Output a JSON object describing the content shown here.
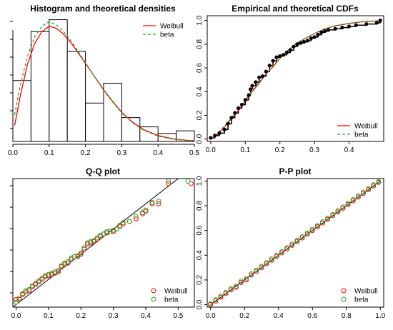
{
  "chart_data": [
    {
      "type": "histogram",
      "title": "Histogram and theoretical densities",
      "xlim": [
        0,
        0.5
      ],
      "ylim": [
        0,
        9.5
      ],
      "x_ticks": [
        "0.0",
        "0.1",
        "0.2",
        "0.3",
        "0.4",
        "0.5"
      ],
      "bins": {
        "edges": [
          0,
          0.05,
          0.1,
          0.15,
          0.2,
          0.25,
          0.3,
          0.35,
          0.4,
          0.45,
          0.5
        ],
        "density": [
          4.6,
          8.3,
          9.2,
          6.8,
          2.9,
          4.4,
          1.8,
          1.1,
          0.6,
          0.8
        ]
      },
      "series": [
        {
          "name": "Weibull",
          "color": "#ff0000",
          "style": "solid",
          "x": [
            0.005,
            0.02,
            0.04,
            0.06,
            0.08,
            0.1,
            0.12,
            0.14,
            0.16,
            0.18,
            0.2,
            0.22,
            0.25,
            0.28,
            0.3,
            0.33,
            0.36,
            0.4,
            0.44,
            0.48,
            0.5
          ],
          "y": [
            1.2,
            3.4,
            5.8,
            7.4,
            8.3,
            8.7,
            8.55,
            8.1,
            7.45,
            6.7,
            5.9,
            5.1,
            3.9,
            2.85,
            2.2,
            1.45,
            0.9,
            0.45,
            0.2,
            0.08,
            0.05
          ]
        },
        {
          "name": "beta",
          "color": "#2aa52a",
          "style": "dashed",
          "x": [
            0.005,
            0.02,
            0.04,
            0.06,
            0.08,
            0.1,
            0.12,
            0.14,
            0.16,
            0.18,
            0.2,
            0.22,
            0.25,
            0.28,
            0.3,
            0.33,
            0.36,
            0.4,
            0.44,
            0.48,
            0.5
          ],
          "y": [
            2.0,
            4.2,
            6.4,
            7.9,
            8.7,
            9.05,
            8.8,
            8.3,
            7.6,
            6.8,
            5.95,
            5.1,
            3.85,
            2.8,
            2.15,
            1.4,
            0.85,
            0.4,
            0.17,
            0.06,
            0.04
          ]
        }
      ],
      "legend": {
        "position": "top-right",
        "entries": [
          "Weibull",
          "beta"
        ]
      }
    },
    {
      "type": "line",
      "title": "Empirical and theoretical CDFs",
      "xlim": [
        -0.01,
        0.5
      ],
      "ylim": [
        -0.02,
        1.04
      ],
      "x_ticks": [
        "0.0",
        "0.1",
        "0.2",
        "0.3",
        "0.4"
      ],
      "y_ticks": [
        "0.0",
        "0.2",
        "0.4",
        "0.6",
        "0.8",
        "1.0"
      ],
      "empirical": {
        "x": [
          0.0,
          0.012,
          0.025,
          0.04,
          0.05,
          0.06,
          0.07,
          0.08,
          0.09,
          0.1,
          0.11,
          0.115,
          0.12,
          0.13,
          0.14,
          0.15,
          0.16,
          0.17,
          0.18,
          0.19,
          0.2,
          0.21,
          0.22,
          0.23,
          0.24,
          0.25,
          0.26,
          0.27,
          0.28,
          0.29,
          0.3,
          0.31,
          0.32,
          0.33,
          0.34,
          0.36,
          0.38,
          0.4,
          0.42,
          0.45,
          0.48,
          0.49
        ],
        "y": [
          0.01,
          0.03,
          0.05,
          0.08,
          0.13,
          0.18,
          0.22,
          0.26,
          0.29,
          0.33,
          0.37,
          0.42,
          0.45,
          0.48,
          0.52,
          0.53,
          0.57,
          0.62,
          0.66,
          0.69,
          0.7,
          0.71,
          0.73,
          0.75,
          0.78,
          0.8,
          0.81,
          0.82,
          0.83,
          0.85,
          0.86,
          0.88,
          0.9,
          0.91,
          0.92,
          0.93,
          0.94,
          0.95,
          0.96,
          0.97,
          0.98,
          1.0
        ]
      },
      "series": [
        {
          "name": "Weibull",
          "color": "#ff0000",
          "style": "solid",
          "x": [
            0.0,
            0.02,
            0.04,
            0.06,
            0.08,
            0.1,
            0.12,
            0.14,
            0.16,
            0.18,
            0.2,
            0.22,
            0.25,
            0.28,
            0.3,
            0.33,
            0.36,
            0.4,
            0.44,
            0.49
          ],
          "y": [
            0.0,
            0.04,
            0.1,
            0.17,
            0.24,
            0.32,
            0.4,
            0.47,
            0.55,
            0.61,
            0.68,
            0.74,
            0.81,
            0.86,
            0.89,
            0.93,
            0.955,
            0.975,
            0.99,
            0.997
          ]
        },
        {
          "name": "beta",
          "color": "#2aa52a",
          "style": "dashed",
          "x": [
            0.0,
            0.02,
            0.04,
            0.06,
            0.08,
            0.1,
            0.12,
            0.14,
            0.16,
            0.18,
            0.2,
            0.22,
            0.25,
            0.28,
            0.3,
            0.33,
            0.36,
            0.4,
            0.44,
            0.49
          ],
          "y": [
            0.0,
            0.05,
            0.11,
            0.18,
            0.25,
            0.33,
            0.41,
            0.48,
            0.55,
            0.62,
            0.68,
            0.74,
            0.81,
            0.86,
            0.89,
            0.93,
            0.955,
            0.976,
            0.99,
            0.997
          ]
        }
      ],
      "legend": {
        "position": "bottom-right",
        "entries": [
          "Weibull",
          "beta"
        ]
      }
    },
    {
      "type": "scatter",
      "title": "Q-Q plot",
      "xlim": [
        -0.01,
        0.55
      ],
      "ylim": [
        -0.01,
        0.5
      ],
      "x_ticks": [
        "0.0",
        "0.1",
        "0.2",
        "0.3",
        "0.4",
        "0.5"
      ],
      "reference_line": "y = x",
      "series": [
        {
          "name": "Weibull",
          "color": "#ff0000",
          "marker": "open-circle",
          "x": [
            0.0,
            0.01,
            0.02,
            0.03,
            0.04,
            0.05,
            0.06,
            0.07,
            0.08,
            0.09,
            0.1,
            0.11,
            0.12,
            0.13,
            0.14,
            0.15,
            0.16,
            0.17,
            0.18,
            0.19,
            0.2,
            0.21,
            0.22,
            0.23,
            0.24,
            0.25,
            0.26,
            0.27,
            0.28,
            0.29,
            0.3,
            0.31,
            0.32,
            0.33,
            0.35,
            0.37,
            0.39,
            0.4,
            0.42,
            0.44,
            0.47,
            0.54
          ],
          "y": [
            0.02,
            0.02,
            0.04,
            0.05,
            0.055,
            0.07,
            0.08,
            0.09,
            0.1,
            0.11,
            0.115,
            0.12,
            0.125,
            0.13,
            0.15,
            0.16,
            0.165,
            0.18,
            0.19,
            0.19,
            0.2,
            0.22,
            0.24,
            0.245,
            0.25,
            0.26,
            0.27,
            0.28,
            0.285,
            0.29,
            0.29,
            0.3,
            0.31,
            0.32,
            0.33,
            0.34,
            0.36,
            0.37,
            0.4,
            0.4,
            0.48,
            0.48
          ]
        },
        {
          "name": "beta",
          "color": "#2aa52a",
          "marker": "open-circle",
          "x": [
            0.0,
            0.01,
            0.02,
            0.03,
            0.04,
            0.05,
            0.06,
            0.07,
            0.08,
            0.09,
            0.1,
            0.11,
            0.12,
            0.13,
            0.14,
            0.15,
            0.16,
            0.17,
            0.18,
            0.19,
            0.2,
            0.21,
            0.22,
            0.23,
            0.24,
            0.25,
            0.26,
            0.27,
            0.28,
            0.29,
            0.3,
            0.31,
            0.32,
            0.33,
            0.35,
            0.37,
            0.39,
            0.4,
            0.42,
            0.44,
            0.47,
            0.53
          ],
          "y": [
            0.01,
            0.025,
            0.045,
            0.055,
            0.06,
            0.075,
            0.085,
            0.095,
            0.105,
            0.115,
            0.12,
            0.125,
            0.13,
            0.135,
            0.155,
            0.165,
            0.17,
            0.185,
            0.19,
            0.195,
            0.205,
            0.225,
            0.245,
            0.25,
            0.255,
            0.265,
            0.275,
            0.28,
            0.29,
            0.29,
            0.295,
            0.3,
            0.315,
            0.325,
            0.33,
            0.35,
            0.365,
            0.375,
            0.405,
            0.41,
            0.49,
            0.49
          ]
        }
      ],
      "legend": {
        "position": "bottom-right",
        "entries": [
          "Weibull",
          "beta"
        ]
      }
    },
    {
      "type": "scatter",
      "title": "P-P plot",
      "xlim": [
        -0.02,
        1.02
      ],
      "ylim": [
        -0.02,
        1.02
      ],
      "x_ticks": [
        "0.0",
        "0.2",
        "0.4",
        "0.6",
        "0.8",
        "1.0"
      ],
      "y_ticks": [
        "0.0",
        "0.2",
        "0.4",
        "0.6",
        "0.8",
        "1.0"
      ],
      "reference_line": "y = x",
      "series": [
        {
          "name": "Weibull",
          "color": "#ff0000",
          "marker": "open-circle",
          "x": [
            0.0,
            0.03,
            0.06,
            0.09,
            0.12,
            0.15,
            0.18,
            0.21,
            0.24,
            0.27,
            0.3,
            0.33,
            0.36,
            0.39,
            0.42,
            0.45,
            0.48,
            0.51,
            0.54,
            0.57,
            0.6,
            0.63,
            0.66,
            0.69,
            0.72,
            0.75,
            0.78,
            0.81,
            0.84,
            0.87,
            0.9,
            0.93,
            0.96,
            0.99
          ],
          "y": [
            0.0,
            0.03,
            0.06,
            0.09,
            0.12,
            0.14,
            0.18,
            0.2,
            0.24,
            0.27,
            0.3,
            0.33,
            0.36,
            0.39,
            0.42,
            0.45,
            0.48,
            0.51,
            0.54,
            0.57,
            0.6,
            0.63,
            0.66,
            0.69,
            0.72,
            0.75,
            0.78,
            0.81,
            0.84,
            0.87,
            0.9,
            0.93,
            0.96,
            0.99
          ]
        },
        {
          "name": "beta",
          "color": "#2aa52a",
          "marker": "open-circle",
          "x": [
            0.0,
            0.03,
            0.06,
            0.09,
            0.12,
            0.15,
            0.18,
            0.21,
            0.24,
            0.27,
            0.3,
            0.33,
            0.36,
            0.39,
            0.42,
            0.45,
            0.48,
            0.51,
            0.54,
            0.57,
            0.6,
            0.63,
            0.66,
            0.69,
            0.72,
            0.75,
            0.78,
            0.81,
            0.84,
            0.87,
            0.9,
            0.93,
            0.96,
            0.99
          ],
          "y": [
            0.01,
            0.04,
            0.07,
            0.1,
            0.13,
            0.15,
            0.19,
            0.21,
            0.25,
            0.28,
            0.31,
            0.34,
            0.37,
            0.4,
            0.43,
            0.46,
            0.49,
            0.52,
            0.55,
            0.58,
            0.61,
            0.64,
            0.67,
            0.7,
            0.73,
            0.76,
            0.79,
            0.82,
            0.85,
            0.88,
            0.91,
            0.94,
            0.97,
            0.995
          ]
        }
      ],
      "legend": {
        "position": "bottom-right",
        "entries": [
          "Weibull",
          "beta"
        ]
      }
    }
  ]
}
